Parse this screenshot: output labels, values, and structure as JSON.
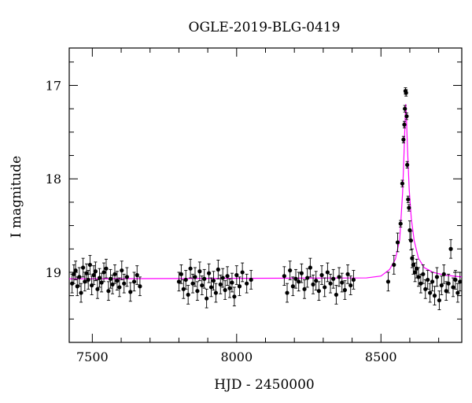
{
  "chart_data": {
    "type": "scatter",
    "title": "OGLE-2019-BLG-0419",
    "xlabel": "HJD - 2450000",
    "ylabel": "I magnitude",
    "xlim": [
      7420,
      8780
    ],
    "ylim": [
      19.75,
      16.6
    ],
    "y_inverted": true,
    "x_ticks": [
      7500,
      8000,
      8500
    ],
    "y_ticks": [
      17,
      18,
      19
    ],
    "grid": false,
    "colors": {
      "data": "#000000",
      "model": "#ff00ff"
    },
    "model": {
      "name": "",
      "baseline": 19.07,
      "t0": 8586,
      "peak": 17.2,
      "x": [
        7420,
        8450,
        8500,
        8530,
        8550,
        8565,
        8575,
        8580,
        8584,
        8586,
        8588,
        8592,
        8598,
        8605,
        8615,
        8630,
        8650,
        8680,
        8720,
        8780
      ],
      "y": [
        19.07,
        19.06,
        19.04,
        18.97,
        18.86,
        18.65,
        18.15,
        17.72,
        17.33,
        17.2,
        17.32,
        17.68,
        18.12,
        18.42,
        18.66,
        18.85,
        18.95,
        19.0,
        19.03,
        19.05
      ]
    },
    "series": [
      {
        "x": [
          7430,
          7436,
          7442,
          7448,
          7455,
          7461,
          7468,
          7474,
          7480,
          7486,
          7492,
          7498,
          7505,
          7511,
          7518,
          7525,
          7532,
          7540,
          7548,
          7556,
          7563,
          7570,
          7578,
          7586,
          7594,
          7602,
          7610,
          7620,
          7632,
          7645,
          7655,
          7665,
          7800,
          7808,
          7816,
          7824,
          7832,
          7840,
          7848,
          7856,
          7864,
          7872,
          7880,
          7888,
          7896,
          7904,
          7912,
          7920,
          7928,
          7936,
          7944,
          7952,
          7960,
          7968,
          7976,
          7984,
          7992,
          8000,
          8010,
          8020,
          8035,
          8050,
          8165,
          8175,
          8185,
          8195,
          8205,
          8215,
          8225,
          8235,
          8245,
          8255,
          8265,
          8275,
          8285,
          8295,
          8305,
          8315,
          8325,
          8335,
          8345,
          8355,
          8365,
          8375,
          8385,
          8395,
          8405,
          8525,
          8545,
          8558,
          8568,
          8574,
          8578,
          8581,
          8583,
          8585,
          8587,
          8589,
          8591,
          8594,
          8597,
          8600,
          8604,
          8608,
          8612,
          8618,
          8624,
          8630,
          8638,
          8646,
          8654,
          8662,
          8670,
          8678,
          8686,
          8694,
          8702,
          8710,
          8718,
          8726,
          8734,
          8742,
          8750,
          8758,
          8766,
          8774
        ],
        "y": [
          19.12,
          19.02,
          18.98,
          19.15,
          19.05,
          19.22,
          18.95,
          19.1,
          19.01,
          19.08,
          18.92,
          19.14,
          19.03,
          18.99,
          19.18,
          19.06,
          19.11,
          19.0,
          18.96,
          19.2,
          19.07,
          19.13,
          19.02,
          19.09,
          19.16,
          18.98,
          19.12,
          19.05,
          19.21,
          19.1,
          19.03,
          19.15,
          19.1,
          19.02,
          19.18,
          19.08,
          19.24,
          18.96,
          19.12,
          19.05,
          19.2,
          18.99,
          19.14,
          19.07,
          19.28,
          19.01,
          19.16,
          19.09,
          19.22,
          18.97,
          19.13,
          19.06,
          19.19,
          19.04,
          19.17,
          19.11,
          19.26,
          19.03,
          19.15,
          19.0,
          19.12,
          19.08,
          19.04,
          19.22,
          18.98,
          19.15,
          19.07,
          19.1,
          19.01,
          19.18,
          19.06,
          18.95,
          19.13,
          19.09,
          19.2,
          19.03,
          19.16,
          19.0,
          19.12,
          19.07,
          19.24,
          19.05,
          19.11,
          19.19,
          19.02,
          19.14,
          19.08,
          19.1,
          18.92,
          18.68,
          18.48,
          18.05,
          17.58,
          17.42,
          17.25,
          17.06,
          17.08,
          17.33,
          17.85,
          18.22,
          18.31,
          18.55,
          18.66,
          18.85,
          18.92,
          19.0,
          18.96,
          19.05,
          19.12,
          19.02,
          19.18,
          19.08,
          19.22,
          19.1,
          19.25,
          19.05,
          19.3,
          19.14,
          19.02,
          19.2,
          19.12,
          18.75,
          19.16,
          19.08,
          19.22,
          19.1
        ],
        "yerr": 0.1
      }
    ]
  }
}
